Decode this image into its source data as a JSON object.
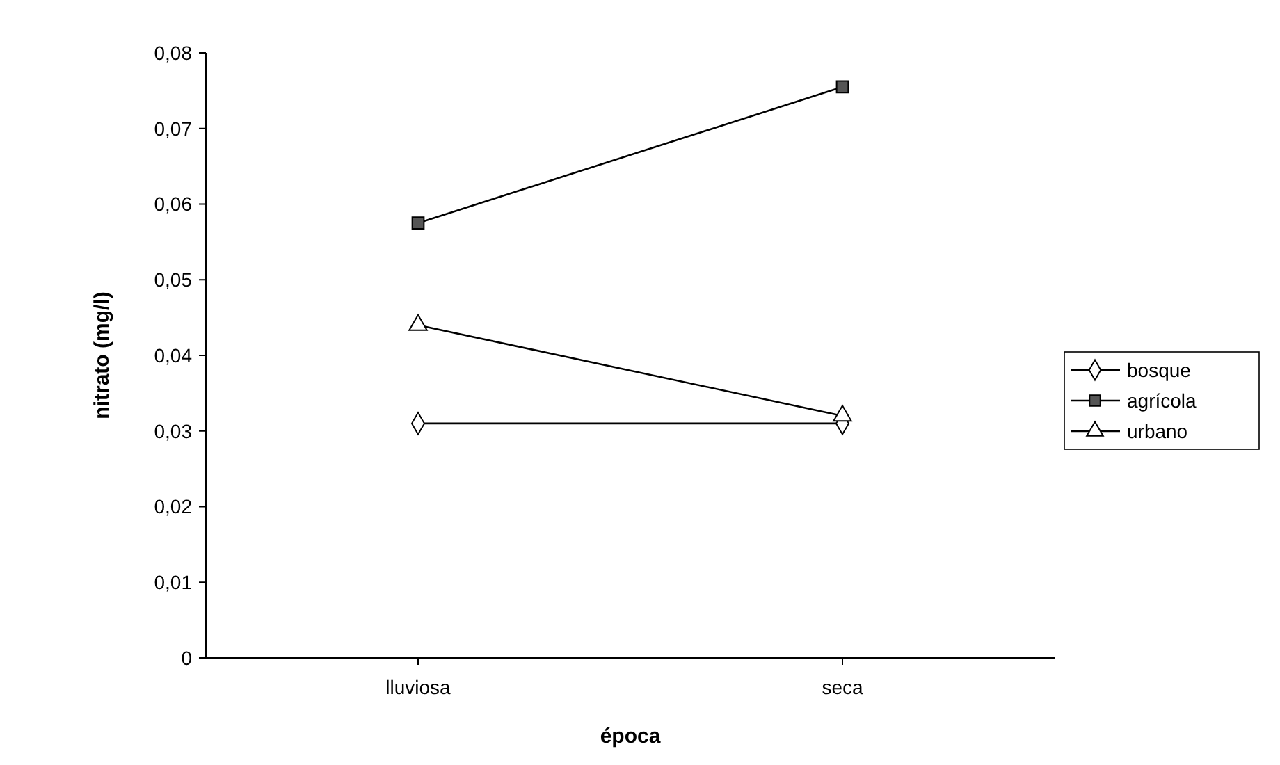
{
  "chart_data": {
    "type": "line",
    "xlabel": "época",
    "ylabel": "nitrato (mg/l)",
    "categories": [
      "lluviosa",
      "seca"
    ],
    "ylim": [
      0,
      0.08
    ],
    "yticks": [
      {
        "value": 0,
        "label": "0"
      },
      {
        "value": 0.01,
        "label": "0,01"
      },
      {
        "value": 0.02,
        "label": "0,02"
      },
      {
        "value": 0.03,
        "label": "0,03"
      },
      {
        "value": 0.04,
        "label": "0,04"
      },
      {
        "value": 0.05,
        "label": "0,05"
      },
      {
        "value": 0.06,
        "label": "0,06"
      },
      {
        "value": 0.07,
        "label": "0,07"
      },
      {
        "value": 0.08,
        "label": "0,08"
      }
    ],
    "grid": false,
    "legend": "right",
    "line_style": "solid",
    "series": [
      {
        "name": "bosque",
        "color": "#000000",
        "marker": "diamond",
        "values": [
          0.031,
          0.031
        ]
      },
      {
        "name": "agrícola",
        "color": "#000000",
        "marker": "square",
        "values": [
          0.0575,
          0.0755
        ]
      },
      {
        "name": "urbano",
        "color": "#000000",
        "marker": "triangle",
        "values": [
          0.044,
          0.032
        ]
      }
    ]
  }
}
